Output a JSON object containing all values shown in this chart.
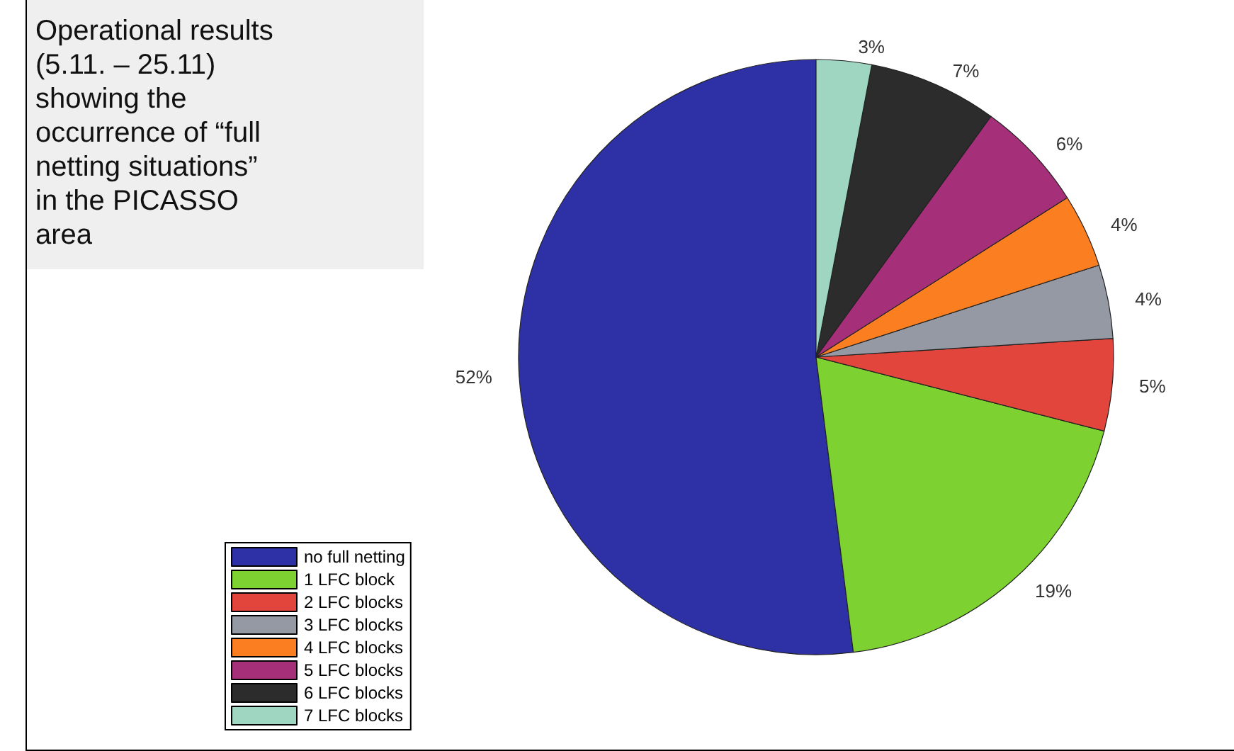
{
  "chart_data": {
    "type": "pie",
    "title": "Operational results (5.11. – 25.11) showing the occurrence of “full netting situations” in the PICASSO area",
    "categories": [
      "no full netting",
      "1 LFC block",
      "2 LFC blocks",
      "3 LFC blocks",
      "4 LFC blocks",
      "5 LFC blocks",
      "6 LFC blocks",
      "7 LFC blocks"
    ],
    "values": [
      52,
      19,
      5,
      4,
      4,
      6,
      7,
      3
    ],
    "colors": [
      "#2e31a6",
      "#7dd130",
      "#e2453c",
      "#9499a3",
      "#fb7f21",
      "#a62f7a",
      "#2c2c2c",
      "#9fd6c2"
    ],
    "value_labels": [
      "52%",
      "19%",
      "5%",
      "4%",
      "4%",
      "6%",
      "7%",
      "3%"
    ],
    "legend": "bottom left"
  }
}
